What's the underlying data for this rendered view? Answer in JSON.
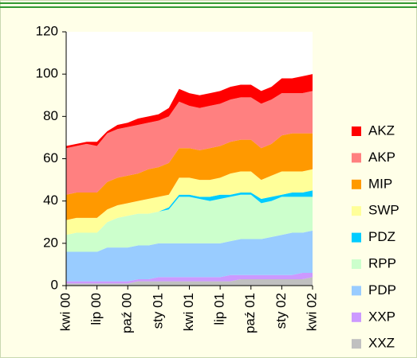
{
  "chart_data": {
    "type": "stacked_area",
    "categories": [
      "kwi 00",
      null,
      null,
      "lip 00",
      null,
      null,
      "paź 00",
      null,
      null,
      "sty 01",
      null,
      null,
      "kwi 01",
      null,
      null,
      "lip 01",
      null,
      null,
      "paź 01",
      null,
      null,
      "sty 02",
      null,
      null,
      "kwi 02"
    ],
    "series": [
      {
        "name": "XXZ",
        "color": "#c0c0c0",
        "values": [
          1,
          1,
          1,
          1,
          1,
          1,
          1,
          2,
          2,
          2,
          2,
          2,
          2,
          2,
          2,
          2,
          2,
          3,
          3,
          3,
          3,
          3,
          3,
          3,
          4
        ]
      },
      {
        "name": "XXP",
        "color": "#cc99ff",
        "values": [
          1,
          1,
          1,
          1,
          1,
          1,
          1,
          1,
          1,
          2,
          2,
          2,
          2,
          2,
          2,
          2,
          3,
          2,
          2,
          2,
          2,
          2,
          2,
          3,
          2
        ]
      },
      {
        "name": "PDP",
        "color": "#99ccff",
        "values": [
          14,
          14,
          14,
          14,
          16,
          16,
          16,
          16,
          16,
          16,
          16,
          16,
          16,
          16,
          16,
          16,
          16,
          17,
          17,
          17,
          18,
          19,
          20,
          19,
          20
        ]
      },
      {
        "name": "RPP",
        "color": "#ccffcc",
        "values": [
          8,
          9,
          9,
          9,
          12,
          14,
          15,
          15,
          15,
          15,
          16,
          22,
          22,
          21,
          20,
          21,
          21,
          21,
          21,
          17,
          17,
          18,
          17,
          17,
          16
        ]
      },
      {
        "name": "PDZ",
        "color": "#00ccff",
        "values": [
          0,
          0,
          0,
          0,
          0,
          0,
          0,
          0,
          0,
          0,
          1,
          1,
          1,
          1,
          2,
          2,
          1,
          1,
          1,
          2,
          2,
          1,
          2,
          2,
          3
        ]
      },
      {
        "name": "SWP",
        "color": "#ffff99",
        "values": [
          7,
          7,
          7,
          7,
          6,
          6,
          6,
          6,
          7,
          7,
          6,
          8,
          8,
          8,
          8,
          8,
          10,
          10,
          10,
          9,
          10,
          11,
          10,
          10,
          10
        ]
      },
      {
        "name": "MIP",
        "color": "#ff9900",
        "values": [
          12,
          12,
          12,
          12,
          13,
          13,
          13,
          13,
          14,
          14,
          15,
          14,
          14,
          14,
          15,
          15,
          15,
          15,
          15,
          15,
          15,
          17,
          18,
          18,
          17
        ]
      },
      {
        "name": "AKP",
        "color": "#ff8080",
        "values": [
          22,
          22,
          23,
          22,
          23,
          23,
          23,
          23,
          22,
          22,
          22,
          22,
          20,
          20,
          20,
          20,
          20,
          20,
          20,
          21,
          21,
          20,
          19,
          19,
          20
        ]
      },
      {
        "name": "AKZ",
        "color": "#ff0000",
        "values": [
          1,
          1,
          1,
          2,
          1,
          2,
          2,
          3,
          3,
          3,
          4,
          6,
          6,
          6,
          6,
          6,
          6,
          6,
          6,
          6,
          6,
          7,
          7,
          8,
          8
        ]
      }
    ],
    "ylim": [
      0,
      120
    ],
    "yticks": [
      0,
      20,
      40,
      60,
      80,
      100,
      120
    ],
    "legend": "right"
  }
}
